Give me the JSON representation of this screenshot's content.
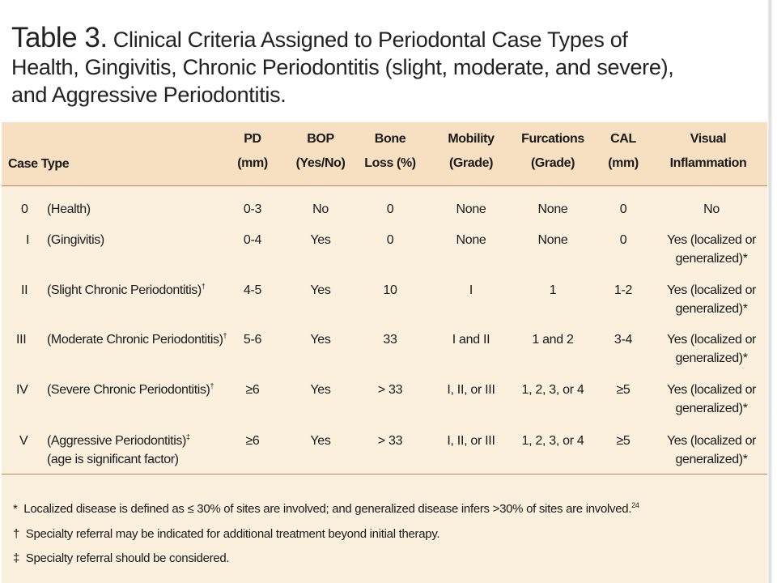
{
  "caption": {
    "label": "Table 3.",
    "text_line1": "Clinical Criteria Assigned to Periodontal Case Types of",
    "text_line2": "Health, Gingivitis, Chronic Periodontitis (slight, moderate, and severe),",
    "text_line3": "and Aggressive Periodontitis."
  },
  "table": {
    "headers": {
      "case_type": "Case Type",
      "pd": [
        "PD",
        "(mm)"
      ],
      "bop": [
        "BOP",
        "(Yes/No)"
      ],
      "bone_loss": [
        "Bone",
        "Loss (%)"
      ],
      "mobility": [
        "Mobility",
        "(Grade)"
      ],
      "furcations": [
        "Furcations",
        "(Grade)"
      ],
      "cal": [
        "CAL",
        "(mm)"
      ],
      "visual": [
        "Visual",
        "Inflammation"
      ]
    },
    "rows": [
      {
        "num": "0",
        "name": "(Health)",
        "name_sup": "",
        "name2": "",
        "pd": "0-3",
        "bop": "No",
        "bone": "0",
        "mobility": "None",
        "furcations": "None",
        "cal": "0",
        "visual1": "No",
        "visual2": ""
      },
      {
        "num": "I",
        "name": "(Gingivitis)",
        "name_sup": "",
        "name2": "",
        "pd": "0-4",
        "bop": "Yes",
        "bone": "0",
        "mobility": "None",
        "furcations": "None",
        "cal": "0",
        "visual1": "Yes (localized or",
        "visual2": "generalized)*"
      },
      {
        "num": "II",
        "name": "(Slight Chronic Periodontitis)",
        "name_sup": "†",
        "name2": "",
        "pd": "4-5",
        "bop": "Yes",
        "bone": "10",
        "mobility": "I",
        "furcations": "1",
        "cal": "1-2",
        "visual1": "Yes (localized or",
        "visual2": "generalized)*"
      },
      {
        "num": "III",
        "name": "(Moderate Chronic Periodontitis)",
        "name_sup": "†",
        "name2": "",
        "pd": "5-6",
        "bop": "Yes",
        "bone": "33",
        "mobility": "I and II",
        "furcations": "1 and 2",
        "cal": "3-4",
        "visual1": "Yes (localized or",
        "visual2": "generalized)*"
      },
      {
        "num": "IV",
        "name": "(Severe Chronic Periodontitis)",
        "name_sup": "†",
        "name2": "",
        "pd": "≥6",
        "bop": "Yes",
        "bone": "> 33",
        "mobility": "I, II, or III",
        "furcations": "1, 2, 3, or 4",
        "cal": "≥5",
        "visual1": "Yes (localized or",
        "visual2": "generalized)*"
      },
      {
        "num": "V",
        "name": "(Aggressive Periodontitis)",
        "name_sup": "‡",
        "name2": "(age is significant factor)",
        "pd": "≥6",
        "bop": "Yes",
        "bone": "> 33",
        "mobility": "I, II, or III",
        "furcations": "1, 2, 3, or 4",
        "cal": "≥5",
        "visual1": "Yes (localized or",
        "visual2": "generalized)*"
      }
    ],
    "footnotes": [
      {
        "symbol": "*",
        "text": "Localized disease is defined as ≤ 30% of sites are involved; and generalized disease infers >30% of sites are involved.",
        "sup": "24"
      },
      {
        "symbol": "†",
        "text": "Specialty referral may be indicated for additional treatment beyond initial therapy.",
        "sup": ""
      },
      {
        "symbol": "‡",
        "text": "Specialty referral should be considered.",
        "sup": ""
      }
    ]
  }
}
